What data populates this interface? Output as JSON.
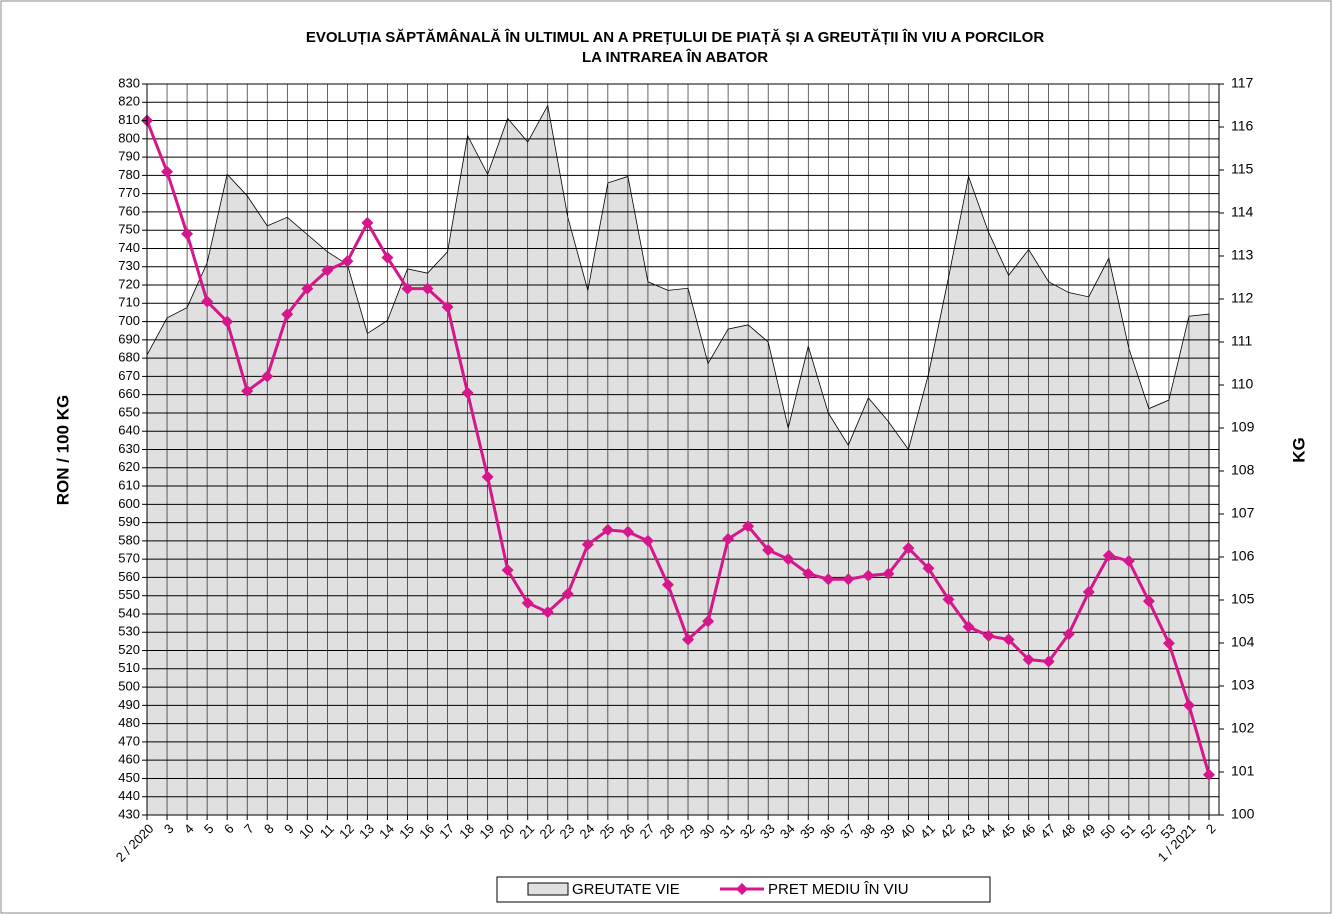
{
  "chart_data": {
    "type": "combo",
    "title": [
      "EVOLUȚIA SĂPTĂMÂNALĂ ÎN ULTIMUL AN A PREȚULUI DE PIAȚĂ ȘI A GREUTĂȚII ÎN VIU A PORCILOR",
      "LA INTRAREA ÎN ABATOR"
    ],
    "y_label": "RON / 100 KG",
    "y2_label": "KG",
    "categories": [
      "2 / 2020",
      "3",
      "4",
      "5",
      "6",
      "7",
      "8",
      "9",
      "10",
      "11",
      "12",
      "13",
      "14",
      "15",
      "16",
      "17",
      "18",
      "19",
      "20",
      "21",
      "22",
      "23",
      "24",
      "25",
      "26",
      "27",
      "28",
      "29",
      "30",
      "31",
      "32",
      "33",
      "34",
      "35",
      "36",
      "37",
      "38",
      "39",
      "40",
      "41",
      "42",
      "43",
      "44",
      "45",
      "46",
      "47",
      "48",
      "49",
      "50",
      "51",
      "52",
      "53",
      "1 / 2021",
      "2"
    ],
    "series": [
      {
        "name": "GREUTATE VIE",
        "type": "area",
        "axis": "y2",
        "color": "#e0e0e0",
        "values": [
          110.7,
          111.56,
          111.8,
          112.84,
          114.9,
          114.4,
          113.7,
          113.9,
          113.5,
          113.1,
          112.8,
          111.2,
          111.5,
          112.7,
          112.6,
          113.1,
          115.8,
          114.9,
          116.2,
          115.65,
          116.5,
          113.9,
          112.2,
          114.7,
          114.85,
          112.4,
          112.2,
          112.25,
          110.5,
          111.3,
          111.4,
          111.0,
          109.0,
          110.9,
          109.35,
          108.6,
          109.7,
          109.15,
          108.5,
          110.25,
          112.5,
          114.85,
          113.55,
          112.55,
          113.15,
          112.4,
          112.15,
          112.05,
          112.95,
          110.85,
          109.45,
          109.65,
          111.6,
          111.65
        ]
      },
      {
        "name": "PRET MEDIU ÎN VIU",
        "type": "line",
        "color": "#d6168b",
        "values": [
          810,
          782,
          748,
          711,
          700,
          662,
          670,
          704,
          718,
          728,
          733,
          754,
          735,
          718,
          718,
          708,
          661,
          615,
          564,
          546,
          541,
          551,
          578,
          586,
          585,
          580,
          556,
          526,
          536,
          581,
          588,
          575,
          570,
          562,
          559,
          559,
          561,
          562,
          576,
          565,
          548,
          533,
          528,
          526,
          515,
          514,
          529,
          552,
          572,
          569,
          547,
          524,
          490,
          452
        ]
      }
    ],
    "ylim": [
      430,
      830
    ],
    "yticks": [
      430,
      440,
      450,
      460,
      470,
      480,
      490,
      500,
      510,
      520,
      530,
      540,
      550,
      560,
      570,
      580,
      590,
      600,
      610,
      620,
      630,
      640,
      650,
      660,
      670,
      680,
      690,
      700,
      710,
      720,
      730,
      740,
      750,
      760,
      770,
      780,
      790,
      800,
      810,
      820,
      830
    ],
    "y2lim": [
      100,
      117
    ],
    "y2ticks": [
      100,
      101,
      102,
      103,
      104,
      105,
      106,
      107,
      108,
      109,
      110,
      111,
      112,
      113,
      114,
      115,
      116,
      117
    ],
    "grid": true,
    "legend": "bottom"
  }
}
